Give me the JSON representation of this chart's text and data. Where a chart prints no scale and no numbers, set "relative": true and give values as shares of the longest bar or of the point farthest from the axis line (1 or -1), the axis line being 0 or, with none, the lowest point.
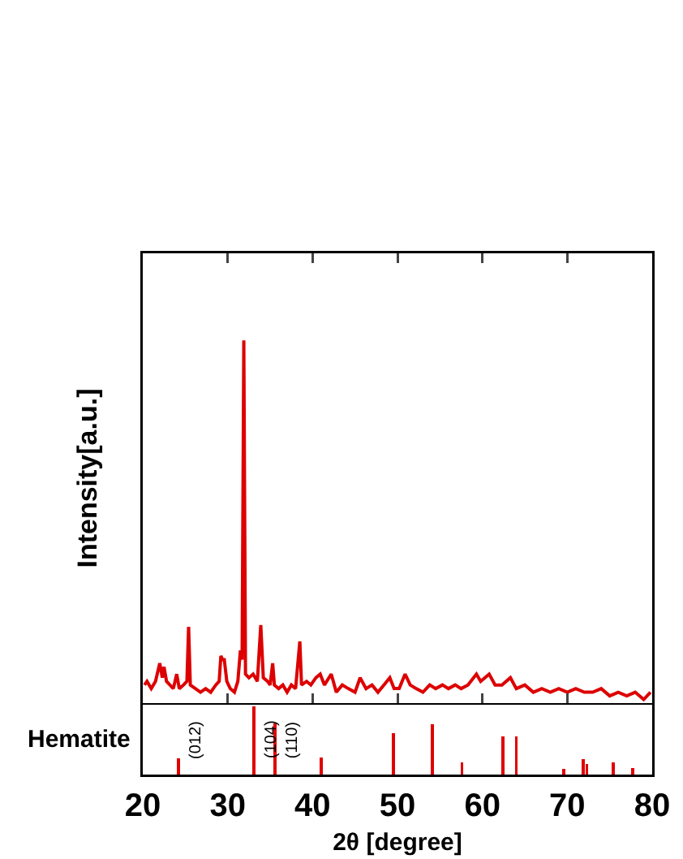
{
  "chart_data": [
    {
      "type": "line",
      "ylabel": "Intensity[a.u.]",
      "relative": true,
      "tick_labels": false,
      "xlim": [
        20,
        80
      ],
      "xticks": [
        {
          "value": 20,
          "label": null
        },
        {
          "value": 30,
          "label": null
        },
        {
          "value": 40,
          "label": null
        },
        {
          "value": 50,
          "label": null
        },
        {
          "value": 60,
          "label": null
        },
        {
          "value": 70,
          "label": null
        },
        {
          "value": 80,
          "label": null
        }
      ],
      "x": [
        20.2,
        20.5,
        21.0,
        21.5,
        22.0,
        22.3,
        22.5,
        22.8,
        23.2,
        23.6,
        24.0,
        24.3,
        24.8,
        25.2,
        25.4,
        25.6,
        26.2,
        26.8,
        27.4,
        28.0,
        28.6,
        29.0,
        29.2,
        29.4,
        29.6,
        29.9,
        30.3,
        30.8,
        31.2,
        31.5,
        31.7,
        31.9,
        32.1,
        32.5,
        33.0,
        33.5,
        33.9,
        34.2,
        34.7,
        35.0,
        35.3,
        35.5,
        36.0,
        36.5,
        37.0,
        37.5,
        38.0,
        38.5,
        38.7,
        39.3,
        39.8,
        40.4,
        40.9,
        41.4,
        42.2,
        42.8,
        43.5,
        44.2,
        45.0,
        45.6,
        46.3,
        47.0,
        47.7,
        48.4,
        49.1,
        49.6,
        50.2,
        50.9,
        51.5,
        52.2,
        53.0,
        53.8,
        54.5,
        55.3,
        56.0,
        56.8,
        57.5,
        58.3,
        59.3,
        59.8,
        60.3,
        60.8,
        61.5,
        62.3,
        63.3,
        64.0,
        65.0,
        66.0,
        67.0,
        68.0,
        69.0,
        70.0,
        71.0,
        72.0,
        73.0,
        74.0,
        75.0,
        76.0,
        77.0,
        78.0,
        79.0,
        79.8
      ],
      "series": [
        {
          "color": "#dd0000",
          "values": [
            0.05,
            0.06,
            0.04,
            0.06,
            0.11,
            0.07,
            0.1,
            0.06,
            0.05,
            0.04,
            0.08,
            0.04,
            0.05,
            0.06,
            0.21,
            0.05,
            0.04,
            0.03,
            0.04,
            0.03,
            0.05,
            0.06,
            0.13,
            0.12,
            0.12,
            0.06,
            0.04,
            0.03,
            0.06,
            0.145,
            0.12,
            1.0,
            0.08,
            0.07,
            0.08,
            0.06,
            0.215,
            0.07,
            0.06,
            0.05,
            0.11,
            0.05,
            0.04,
            0.05,
            0.03,
            0.05,
            0.04,
            0.17,
            0.05,
            0.06,
            0.05,
            0.07,
            0.08,
            0.05,
            0.08,
            0.03,
            0.05,
            0.04,
            0.03,
            0.07,
            0.04,
            0.05,
            0.03,
            0.05,
            0.07,
            0.04,
            0.04,
            0.08,
            0.05,
            0.04,
            0.03,
            0.05,
            0.04,
            0.05,
            0.04,
            0.05,
            0.04,
            0.05,
            0.08,
            0.06,
            0.07,
            0.08,
            0.05,
            0.05,
            0.07,
            0.04,
            0.05,
            0.03,
            0.04,
            0.03,
            0.04,
            0.03,
            0.04,
            0.03,
            0.03,
            0.04,
            0.02,
            0.03,
            0.02,
            0.03,
            0.01,
            0.03
          ]
        }
      ]
    },
    {
      "type": "bar",
      "ylabel": "Hematite",
      "xlabel": "2θ [degree]",
      "relative": true,
      "tick_labels": "x",
      "xlim": [
        20,
        80
      ],
      "xticks": [
        20,
        30,
        40,
        50,
        60,
        70,
        80
      ],
      "x": [
        24.2,
        33.1,
        35.6,
        41.0,
        49.5,
        54.1,
        57.6,
        62.4,
        64.0,
        69.6,
        71.9,
        72.3,
        75.4,
        77.7
      ],
      "values": [
        0.24,
        1.0,
        0.75,
        0.25,
        0.61,
        0.73,
        0.18,
        0.56,
        0.56,
        0.08,
        0.23,
        0.16,
        0.18,
        0.1
      ],
      "color": "#e00000",
      "annotations": [
        "(012)",
        "(104)",
        "(110)"
      ]
    }
  ]
}
